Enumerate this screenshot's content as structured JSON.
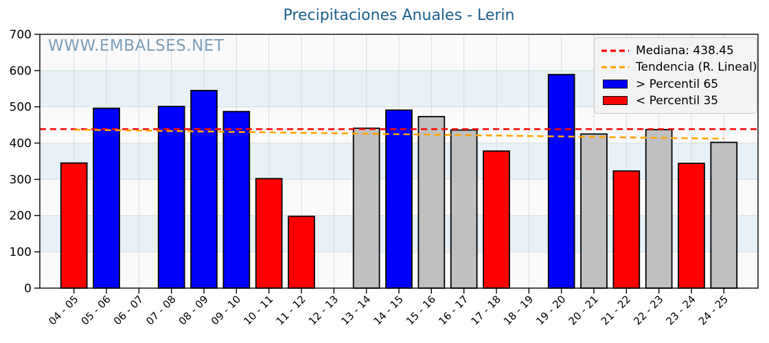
{
  "page": {
    "title": "Precipitaciones Anuales - Lerin",
    "watermark": "WWW.EMBALSES.NET"
  },
  "chart_data": {
    "type": "bar",
    "title": "Precipitaciones Anuales - Lerin",
    "watermark": "WWW.EMBALSES.NET",
    "xlabel": "",
    "ylabel": "",
    "ylim": [
      0,
      700
    ],
    "yticks": [
      0,
      100,
      200,
      300,
      400,
      500,
      600,
      700
    ],
    "grid": true,
    "legend_position": "upper right",
    "categories": [
      "04 - 05",
      "05 - 06",
      "06 - 07",
      "07 - 08",
      "08 - 09",
      "09 - 10",
      "10 - 11",
      "11 - 12",
      "12 - 13",
      "13 - 14",
      "14 - 15",
      "15 - 16",
      "16 - 17",
      "17 - 18",
      "18 - 19",
      "19 - 20",
      "20 - 21",
      "21 - 22",
      "22 - 23",
      "23 - 24",
      "24 - 25"
    ],
    "values": [
      345,
      496,
      null,
      501,
      545,
      487,
      302,
      198,
      null,
      441,
      491,
      473,
      436,
      378,
      null,
      589,
      425,
      323,
      437,
      344,
      402
    ],
    "bar_categories_class": [
      "below",
      "above",
      null,
      "above",
      "above",
      "above",
      "below",
      "below",
      null,
      "mid",
      "above",
      "mid",
      "mid",
      "below",
      null,
      "above",
      "mid",
      "below",
      "mid",
      "below",
      "mid"
    ],
    "median": {
      "value": 438.45,
      "label": "Mediana: 438.45"
    },
    "trend": {
      "label": "Tendencia (R. Lineal)",
      "start_value": 437,
      "end_value": 412
    },
    "legend": [
      {
        "kind": "line",
        "color": "#ff0000",
        "label": "Mediana: 438.45"
      },
      {
        "kind": "line",
        "color": "#ffa500",
        "label": "Tendencia (R. Lineal)"
      },
      {
        "kind": "patch",
        "color": "#0000ff",
        "label": "> Percentil 65"
      },
      {
        "kind": "patch",
        "color": "#ff0000",
        "label": "< Percentil 35"
      }
    ],
    "colors": {
      "above": "#0000ff",
      "below": "#ff0000",
      "mid": "#c0c0c0",
      "median_line": "#ff0000",
      "trend_line": "#ffa500",
      "title": "#1a608d",
      "watermark": "rgba(70,118,155,0.70)",
      "stripe_light": "#fafafa",
      "stripe_blue": "#e7f1f7",
      "grid": "#d4dce0",
      "axis": "#000000",
      "legend_bg": "rgba(243,243,243,0.92)",
      "legend_border": "#cccccc",
      "tick_label": "#000000"
    }
  }
}
